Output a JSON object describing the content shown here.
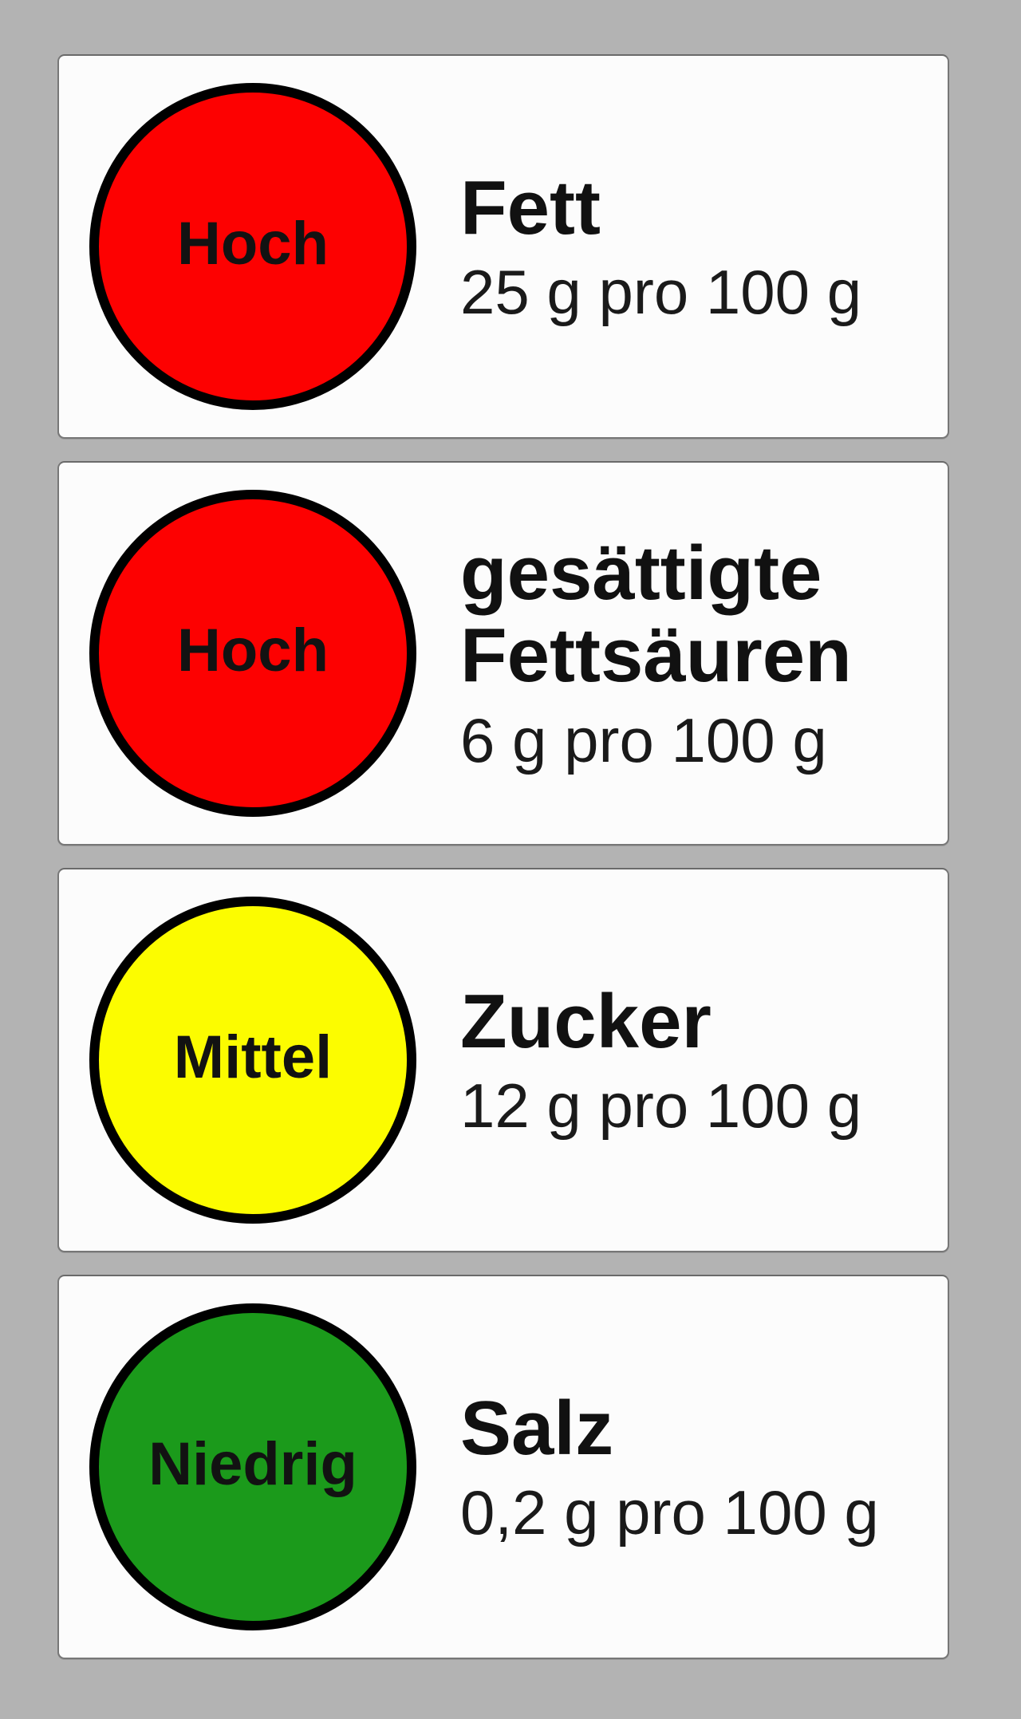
{
  "colors": {
    "background": "#b3b3b3",
    "card_background": "#fcfcfc",
    "card_border": "#777777",
    "circle_ring": "#000000",
    "text": "#111111",
    "level_high": "#fd0101",
    "level_medium": "#fcfc00",
    "level_low": "#1b9a1b"
  },
  "rows": [
    {
      "level": "Hoch",
      "level_color": "#fd0101",
      "nutrient": "Fett",
      "amount": "25 g pro 100 g"
    },
    {
      "level": "Hoch",
      "level_color": "#fd0101",
      "nutrient": "gesättigte Fettsäuren",
      "amount": "6 g pro 100 g"
    },
    {
      "level": "Mittel",
      "level_color": "#fcfc00",
      "nutrient": "Zucker",
      "amount": "12 g pro 100 g"
    },
    {
      "level": "Niedrig",
      "level_color": "#1b9a1b",
      "nutrient": "Salz",
      "amount": "0,2 g pro 100 g"
    }
  ]
}
